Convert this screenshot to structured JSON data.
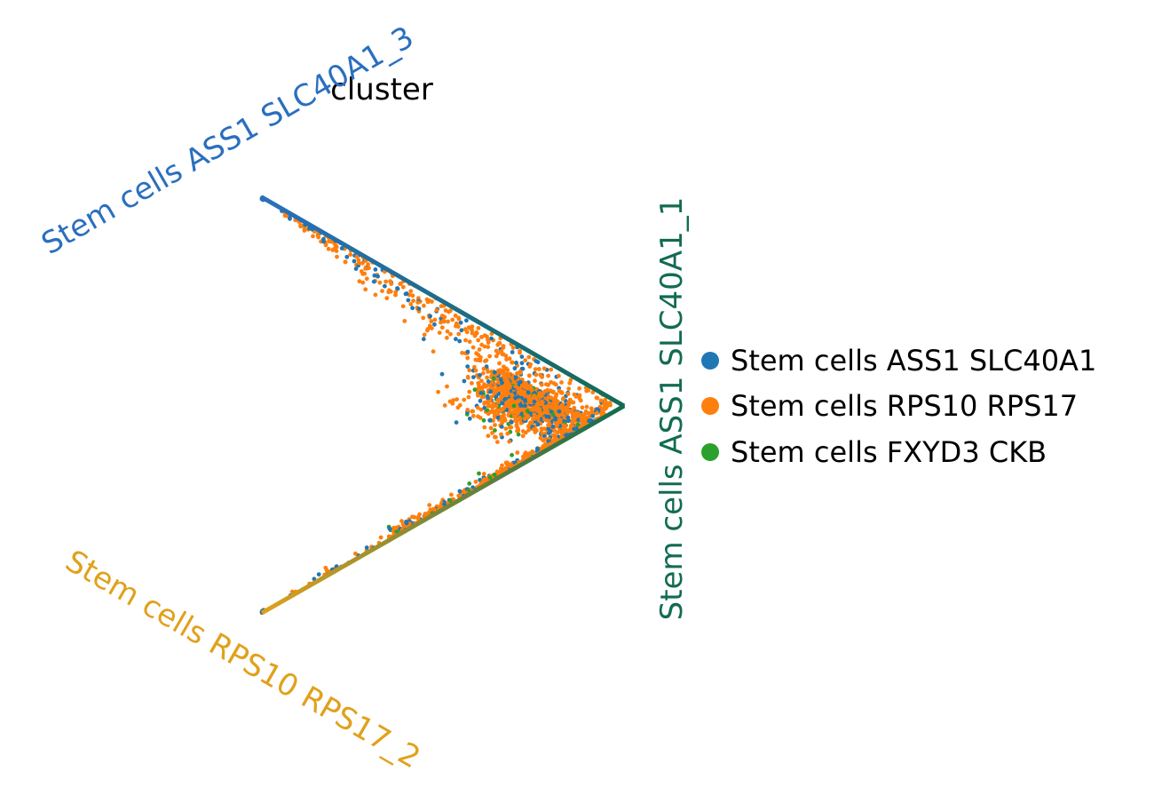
{
  "chart_data": {
    "type": "scatter",
    "subtype": "ternary-simplex",
    "title": "cluster",
    "vertices": [
      {
        "name": "Stem cells ASS1 SLC40A1_3",
        "color": "#2a6fbf"
      },
      {
        "name": "Stem cells ASS1 SLC40A1_1",
        "color": "#126b52"
      },
      {
        "name": "Stem cells RPS10 RPS17_2",
        "color": "#e0a11b"
      }
    ],
    "legend": {
      "placement": "right",
      "entries": [
        {
          "label": "Stem cells ASS1 SLC40A1",
          "color": "#1f77b4"
        },
        {
          "label": "Stem cells RPS10 RPS17",
          "color": "#ff7f0e"
        },
        {
          "label": "Stem cells FXYD3 CKB",
          "color": "#2ca02c"
        }
      ]
    },
    "grid": false,
    "description_of_points": "barycentric coordinates (weights for vertex _3, _1, _2); thousands of points concentrated near the _1–_2 edge and a spike toward vertex _3"
  }
}
